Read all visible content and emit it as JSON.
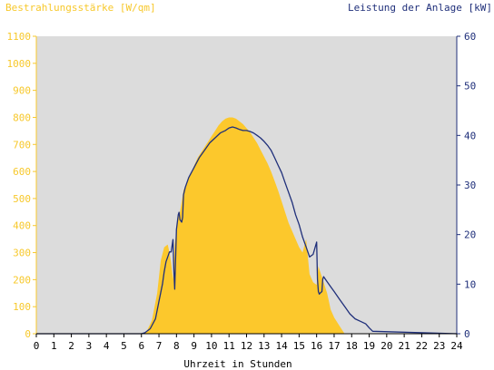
{
  "chart_data": {
    "type": "area",
    "title": "",
    "y_left_label": "Bestrahlungsstärke [W/qm]",
    "y_right_label": "Leistung der Anlage [kW]",
    "xlabel": "Uhrzeit in Stunden",
    "x_ticks": [
      "0",
      "1",
      "2",
      "3",
      "4",
      "5",
      "6",
      "7",
      "8",
      "9",
      "10",
      "11",
      "12",
      "13",
      "14",
      "15",
      "16",
      "17",
      "18",
      "19",
      "20",
      "21",
      "22",
      "23",
      "24"
    ],
    "y_left_ticks": [
      "0",
      "100",
      "200",
      "300",
      "400",
      "500",
      "600",
      "700",
      "800",
      "900",
      "1000",
      "1100"
    ],
    "y_right_ticks": [
      "0",
      "10",
      "20",
      "30",
      "40",
      "50",
      "60"
    ],
    "xlim": [
      0,
      24
    ],
    "ylim_left": [
      0,
      1100
    ],
    "ylim_right": [
      0,
      60
    ],
    "grid": false,
    "colors": {
      "plot_bg": "#dcdcdc",
      "irradiance_fill": "#fcc82c",
      "power_line": "#1f2f7a",
      "left_axis": "#f7c82b",
      "right_axis": "#1f2f7a"
    },
    "series": [
      {
        "axis": "left",
        "style": "area",
        "x": [
          0,
          6.0,
          6.3,
          6.6,
          6.9,
          7.1,
          7.3,
          7.5,
          7.6,
          7.7,
          7.8,
          7.9,
          8.0,
          8.1,
          8.2,
          8.4,
          8.6,
          8.8,
          9.0,
          9.2,
          9.4,
          9.6,
          9.8,
          10.0,
          10.2,
          10.4,
          10.6,
          10.8,
          11.0,
          11.2,
          11.4,
          11.6,
          11.8,
          12.0,
          12.2,
          12.4,
          12.6,
          12.8,
          13.0,
          13.2,
          13.4,
          13.6,
          13.8,
          14.0,
          14.2,
          14.4,
          14.6,
          14.8,
          15.0,
          15.2,
          15.4,
          15.6,
          15.8,
          16.0,
          16.1,
          16.2,
          16.3,
          16.4,
          16.5,
          16.6,
          16.7,
          16.8,
          17.0,
          17.3,
          17.6,
          18.0,
          18.3,
          18.6,
          18.9,
          19.1,
          24
        ],
        "values": [
          0,
          0,
          8,
          50,
          150,
          270,
          320,
          330,
          300,
          260,
          200,
          330,
          380,
          430,
          450,
          530,
          560,
          590,
          620,
          650,
          670,
          690,
          710,
          730,
          750,
          770,
          785,
          795,
          800,
          800,
          795,
          785,
          775,
          760,
          745,
          725,
          705,
          680,
          655,
          630,
          600,
          565,
          530,
          490,
          450,
          410,
          380,
          350,
          320,
          300,
          350,
          220,
          190,
          180,
          250,
          230,
          210,
          190,
          170,
          150,
          120,
          90,
          60,
          30,
          0,
          0,
          0,
          0,
          0,
          0,
          0
        ]
      },
      {
        "axis": "right",
        "style": "line",
        "x": [
          0,
          6.0,
          6.2,
          6.5,
          6.8,
          7.0,
          7.2,
          7.3,
          7.4,
          7.5,
          7.6,
          7.7,
          7.8,
          7.85,
          7.9,
          8.0,
          8.1,
          8.15,
          8.2,
          8.3,
          8.35,
          8.4,
          8.5,
          8.7,
          9.0,
          9.3,
          9.6,
          9.9,
          10.2,
          10.5,
          10.8,
          11.0,
          11.2,
          11.4,
          11.6,
          11.8,
          12.0,
          12.2,
          12.4,
          12.6,
          12.8,
          13.0,
          13.2,
          13.4,
          13.6,
          13.8,
          14.0,
          14.2,
          14.4,
          14.6,
          14.8,
          15.0,
          15.2,
          15.4,
          15.6,
          15.8,
          16.0,
          16.05,
          16.1,
          16.15,
          16.2,
          16.3,
          16.35,
          16.4,
          16.5,
          16.6,
          16.8,
          17.0,
          17.3,
          17.6,
          17.9,
          18.2,
          18.5,
          18.8,
          19.0,
          19.2,
          24
        ],
        "values": [
          0,
          0,
          0.2,
          1.0,
          3.0,
          6.5,
          10.0,
          12.5,
          14.5,
          15.5,
          16.5,
          16.5,
          19.0,
          13.0,
          9.0,
          21.0,
          24.0,
          24.5,
          23.0,
          22.5,
          23.5,
          28.0,
          29.5,
          31.5,
          33.5,
          35.5,
          37.0,
          38.5,
          39.5,
          40.5,
          41.0,
          41.5,
          41.7,
          41.5,
          41.2,
          41.0,
          41.0,
          40.8,
          40.5,
          40.0,
          39.5,
          38.8,
          38.0,
          37.0,
          35.5,
          34.0,
          32.5,
          30.5,
          28.5,
          26.5,
          24.0,
          22.0,
          19.5,
          17.5,
          15.5,
          16.0,
          18.5,
          11.0,
          8.5,
          8.0,
          8.2,
          8.5,
          11.0,
          11.5,
          11.0,
          10.5,
          9.5,
          8.5,
          7.0,
          5.5,
          4.0,
          3.0,
          2.5,
          2.0,
          1.2,
          0.5,
          0
        ]
      }
    ]
  }
}
